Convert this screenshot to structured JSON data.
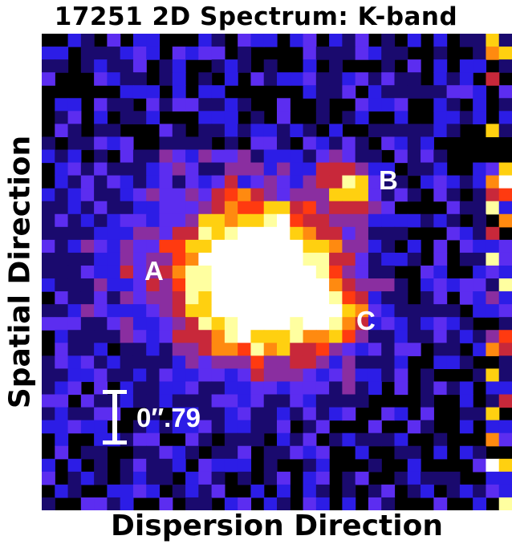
{
  "figure": {
    "title": "17251 2D Spectrum: K-band",
    "x_axis_label": "Dispersion Direction",
    "y_axis_label": "Spatial Direction"
  },
  "annotations": {
    "labels": [
      {
        "id": "A",
        "text": "A"
      },
      {
        "id": "B",
        "text": "B"
      },
      {
        "id": "C",
        "text": "C"
      }
    ],
    "scale_bar_text": "0″.79"
  },
  "colors": {
    "background": "#000000",
    "colormap": [
      "#000000",
      "#1a0a6e",
      "#2c1de6",
      "#5c2df0",
      "#8a2ea0",
      "#c8283a",
      "#ff3a10",
      "#ff8a10",
      "#ffd010",
      "#ffffa0",
      "#ffffff"
    ],
    "label_color": "#ffffff"
  }
}
